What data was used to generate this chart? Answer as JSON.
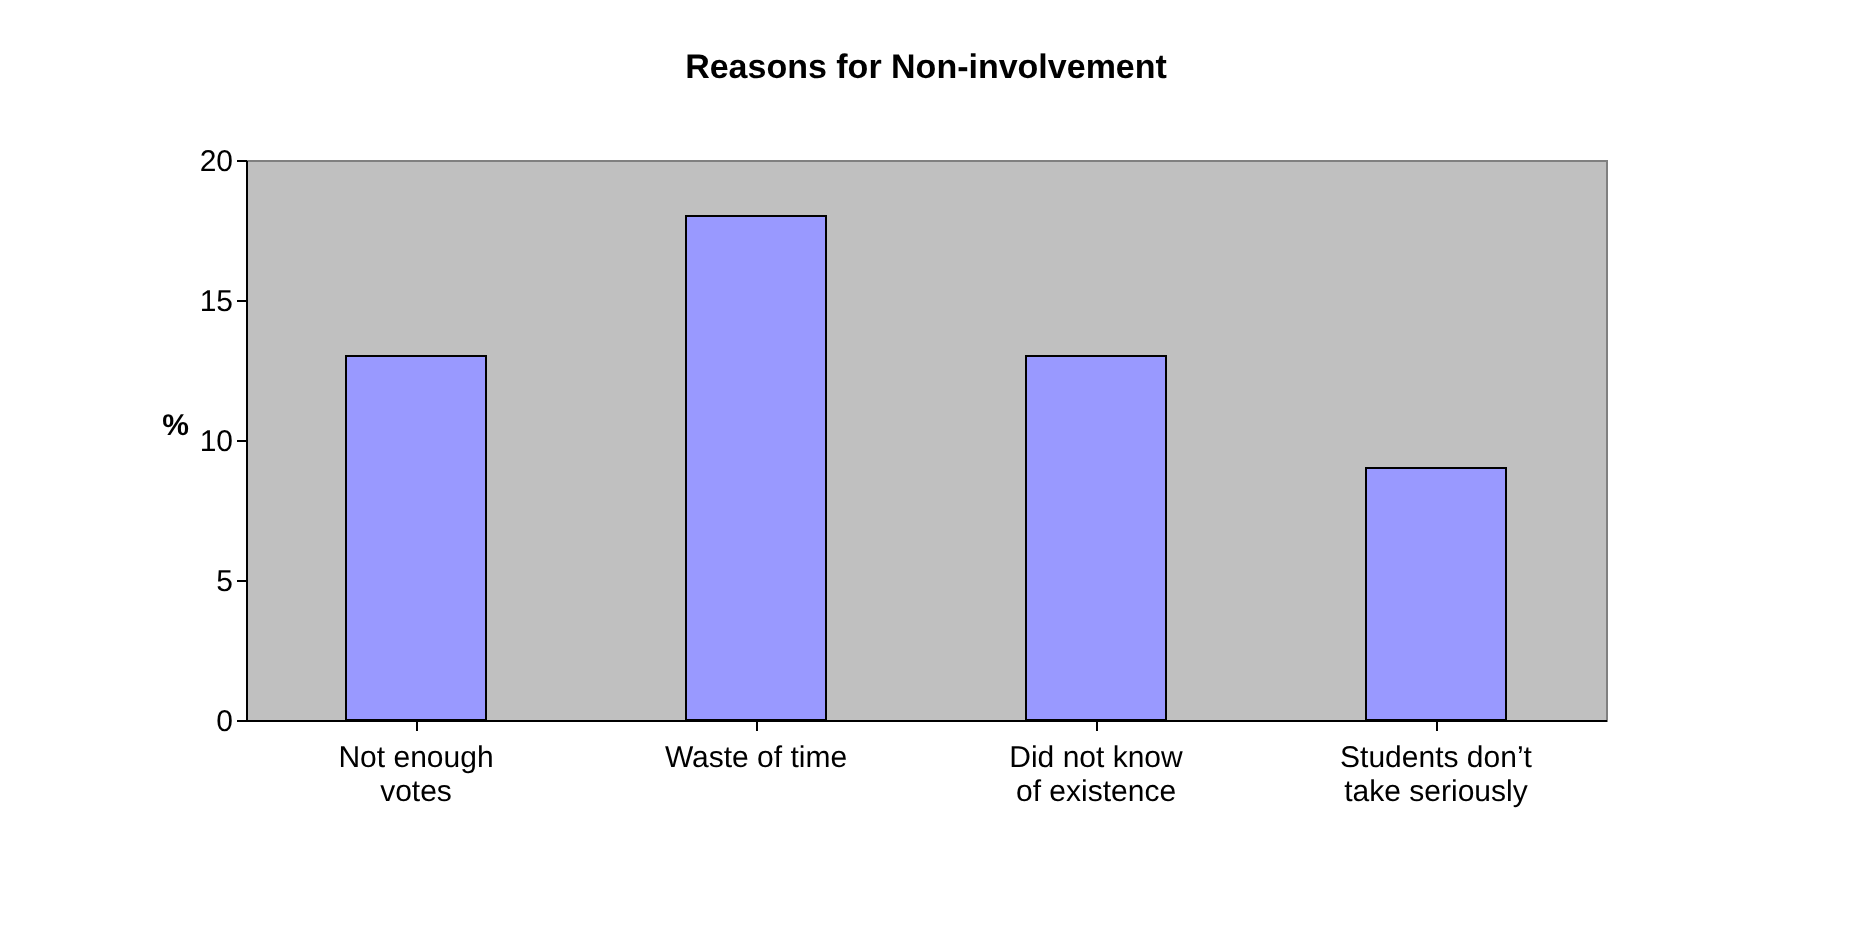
{
  "chart_data": {
    "type": "bar",
    "title": "Reasons for Non-involvement",
    "ylabel": "%",
    "categories": [
      "Not enough\nvotes",
      "Waste of time",
      "Did not know\nof existence",
      "Students don’t\ntake seriously"
    ],
    "values": [
      13,
      18,
      13,
      9
    ],
    "color": "#9999ff",
    "ylim": [
      0,
      20
    ],
    "yticks": [
      0,
      5,
      10,
      15,
      20
    ],
    "grid": false
  }
}
